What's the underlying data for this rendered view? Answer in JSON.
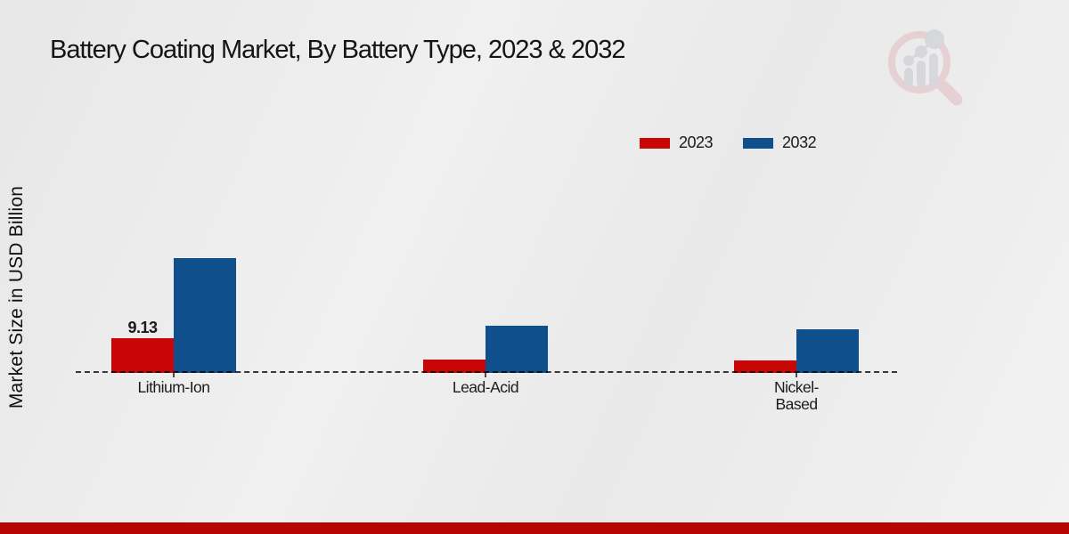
{
  "title": "Battery Coating Market, By Battery Type, 2023 & 2032",
  "y_axis_label": "Market Size in USD Billion",
  "legend": {
    "position": "top-right",
    "items": [
      {
        "label": "2023",
        "color": "#c80606"
      },
      {
        "label": "2032",
        "color": "#0f4f8b"
      }
    ]
  },
  "chart_data": {
    "type": "bar",
    "title": "Battery Coating Market, By Battery Type, 2023 & 2032",
    "xlabel": "",
    "ylabel": "Market Size in USD Billion",
    "categories": [
      "Lithium-Ion",
      "Lead-Acid",
      "Nickel-Based"
    ],
    "category_label_lines": [
      [
        "Lithium-Ion"
      ],
      [
        "Lead-Acid"
      ],
      [
        "Nickel-",
        "Based"
      ]
    ],
    "series": [
      {
        "name": "2023",
        "color": "#c80606",
        "values": [
          9.13,
          3.5,
          3.3
        ]
      },
      {
        "name": "2032",
        "color": "#0f4f8b",
        "values": [
          30.2,
          12.4,
          11.5
        ]
      }
    ],
    "data_labels": [
      {
        "series": "2023",
        "category": "Lithium-Ion",
        "text": "9.13"
      }
    ],
    "ylim": [
      0,
      32
    ],
    "grid": false,
    "baseline_style": "dashed",
    "legend_position": "top-right"
  },
  "watermark": {
    "name": "market-research-future-logo"
  },
  "colors": {
    "bar_2023": "#c80606",
    "bar_2032": "#0f4f8b",
    "axis_line": "#3b3b3b",
    "bottom_strip": "#b90404",
    "watermark_pink": "#e3bfc4",
    "watermark_gray": "#c9cbd1"
  }
}
